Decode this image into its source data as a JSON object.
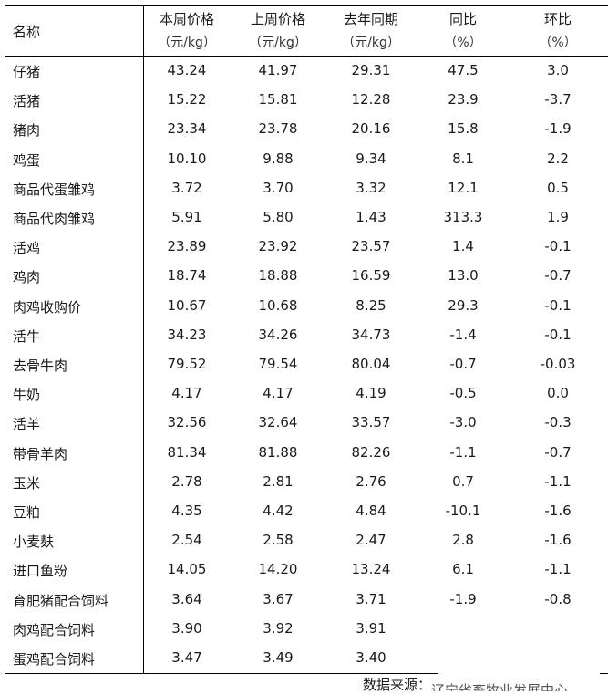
{
  "headers": {
    "name": "名称",
    "this_week": [
      "本周价格",
      "（元/kg）"
    ],
    "last_week": [
      "上周价格",
      "（元/kg）"
    ],
    "last_year": [
      "去年同期",
      "（元/kg）"
    ],
    "yoy": [
      "同比",
      "（%）"
    ],
    "mom": [
      "环比",
      "（%）"
    ]
  },
  "rows": [
    [
      "仔猪",
      "43.24",
      "41.97",
      "29.31",
      "47.5",
      "3.0"
    ],
    [
      "活猪",
      "15.22",
      "15.81",
      "12.28",
      "23.9",
      "-3.7"
    ],
    [
      "猪肉",
      "23.34",
      "23.78",
      "20.16",
      "15.8",
      "-1.9"
    ],
    [
      "鸡蛋",
      "10.10",
      "9.88",
      "9.34",
      "8.1",
      "2.2"
    ],
    [
      "商品代蛋雏鸡",
      "3.72",
      "3.70",
      "3.32",
      "12.1",
      "0.5"
    ],
    [
      "商品代肉雏鸡",
      "5.91",
      "5.80",
      "1.43",
      "313.3",
      "1.9"
    ],
    [
      "活鸡",
      "23.89",
      "23.92",
      "23.57",
      "1.4",
      "-0.1"
    ],
    [
      "鸡肉",
      "18.74",
      "18.88",
      "16.59",
      "13.0",
      "-0.7"
    ],
    [
      "肉鸡收购价",
      "10.67",
      "10.68",
      "8.25",
      "29.3",
      "-0.1"
    ],
    [
      "活牛",
      "34.23",
      "34.26",
      "34.73",
      "-1.4",
      "-0.1"
    ],
    [
      "去骨牛肉",
      "79.52",
      "79.54",
      "80.04",
      "-0.7",
      "-0.03"
    ],
    [
      "牛奶",
      "4.17",
      "4.17",
      "4.19",
      "-0.5",
      "0.0"
    ],
    [
      "活羊",
      "32.56",
      "32.64",
      "33.57",
      "-3.0",
      "-0.3"
    ],
    [
      "带骨羊肉",
      "81.34",
      "81.88",
      "82.26",
      "-1.1",
      "-0.7"
    ],
    [
      "玉米",
      "2.78",
      "2.81",
      "2.76",
      "0.7",
      "-1.1"
    ],
    [
      "豆粕",
      "4.35",
      "4.42",
      "4.84",
      "-10.1",
      "-1.6"
    ],
    [
      "小麦麸",
      "2.54",
      "2.58",
      "2.47",
      "2.8",
      "-1.6"
    ],
    [
      "进口鱼粉",
      "14.05",
      "14.20",
      "13.24",
      "6.1",
      "-1.1"
    ],
    [
      "育肥猪配合饲料",
      "3.64",
      "3.67",
      "3.71",
      "-1.9",
      "-0.8"
    ],
    [
      "肉鸡配合饲料",
      "3.90",
      "3.92",
      "3.91",
      "",
      ""
    ],
    [
      "蛋鸡配合饲料",
      "3.47",
      "3.49",
      "3.40",
      "",
      ""
    ]
  ],
  "source": {
    "label": "数据来源：",
    "org": "辽宁省畜牧业发展中心"
  }
}
